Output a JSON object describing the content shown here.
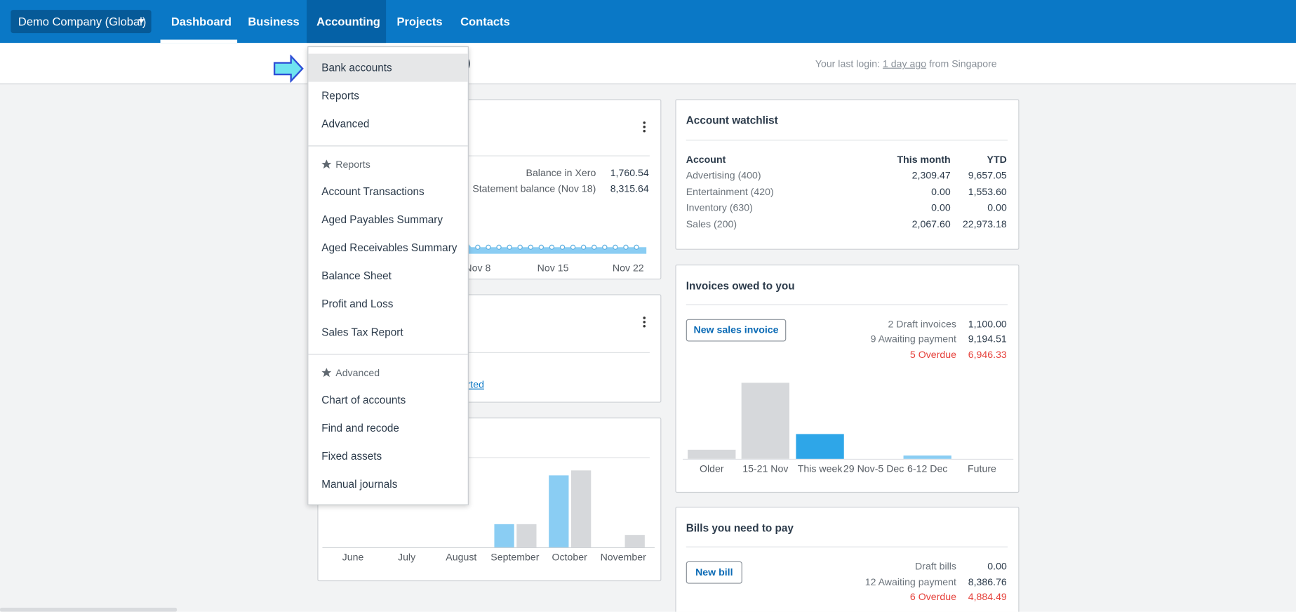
{
  "nav": {
    "company": "Demo Company (Global)",
    "items": [
      "Dashboard",
      "Business",
      "Accounting",
      "Projects",
      "Contacts"
    ]
  },
  "header": {
    "title_fragment": "l)",
    "last_login": {
      "prefix": "Your last login:",
      "link": "1 day ago",
      "suffix": "from Singapore"
    }
  },
  "menu": {
    "items": [
      "Bank accounts",
      "Reports",
      "Advanced"
    ],
    "sections": [
      {
        "title": "Reports",
        "items": [
          "Account Transactions",
          "Aged Payables Summary",
          "Aged Receivables Summary",
          "Balance Sheet",
          "Profit and Loss",
          "Sales Tax Report"
        ]
      },
      {
        "title": "Advanced",
        "items": [
          "Chart of accounts",
          "Find and recode",
          "Fixed assets",
          "Manual journals"
        ]
      }
    ]
  },
  "bank_card": {
    "rows": [
      {
        "label": "Balance in Xero",
        "value": "1,760.54"
      },
      {
        "label": "Statement balance (Nov 18)",
        "value": "8,315.64"
      }
    ],
    "x_labels": [
      "Nov 8",
      "Nov 15",
      "Nov 22"
    ]
  },
  "card2": {
    "link_fragment": "rted"
  },
  "cash_chart": {
    "type": "bar",
    "categories": [
      "June",
      "July",
      "August",
      "September",
      "October",
      "November"
    ],
    "series": [
      {
        "color": "#8acdf3",
        "values": [
          0,
          0,
          0,
          28,
          87,
          0
        ]
      },
      {
        "color": "#d6d8db",
        "values": [
          0,
          0,
          0,
          28,
          93,
          15
        ]
      }
    ]
  },
  "watchlist": {
    "title": "Account watchlist",
    "columns": [
      "Account",
      "This month",
      "YTD"
    ],
    "rows": [
      [
        "Advertising (400)",
        "2,309.47",
        "9,657.05"
      ],
      [
        "Entertainment (420)",
        "0.00",
        "1,553.60"
      ],
      [
        "Inventory (630)",
        "0.00",
        "0.00"
      ],
      [
        "Sales (200)",
        "2,067.60",
        "22,973.18"
      ]
    ]
  },
  "invoices": {
    "title": "Invoices owed to you",
    "button": "New sales invoice",
    "summary": [
      {
        "label": "2 Draft invoices",
        "value": "1,100.00"
      },
      {
        "label": "9 Awaiting payment",
        "value": "9,194.51"
      },
      {
        "label": "5 Overdue",
        "value": "6,946.33"
      }
    ],
    "chart": {
      "type": "bar",
      "categories": [
        "Older",
        "15-21 Nov",
        "This week",
        "29 Nov-5 Dec",
        "6-12 Dec",
        "Future"
      ],
      "values": [
        11,
        92,
        30,
        0,
        4,
        0
      ],
      "colors": [
        "#d6d8db",
        "#d6d8db",
        "#2ea6e8",
        "#2ea6e8",
        "#8acdf3",
        "#8acdf3"
      ]
    }
  },
  "bills": {
    "title": "Bills you need to pay",
    "button": "New bill",
    "summary": [
      {
        "label": "Draft bills",
        "value": "0.00"
      },
      {
        "label": "12 Awaiting payment",
        "value": "8,386.76"
      },
      {
        "label": "6 Overdue",
        "value": "4,884.49"
      }
    ]
  }
}
